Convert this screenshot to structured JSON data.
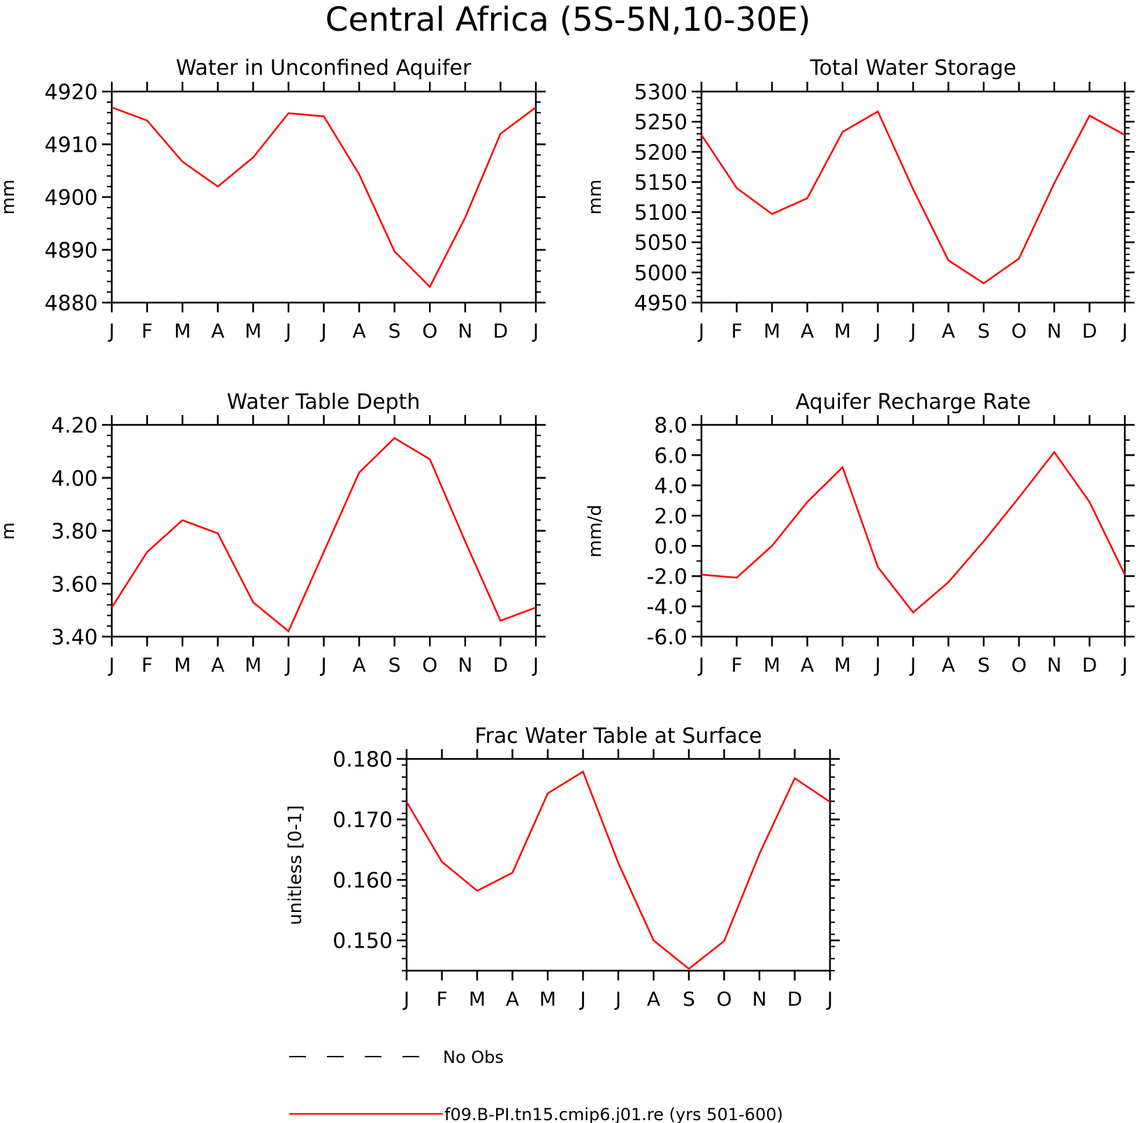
{
  "figure": {
    "title": "Central Africa (5S-5N,10-30E)",
    "line_color": "#ff0000",
    "legend": [
      {
        "label": "No Obs",
        "style": "dashed",
        "color": "#000000"
      },
      {
        "label": "f09.B-PI.tn15.cmip6.j01.re (yrs 501-600)",
        "style": "solid",
        "color": "#ff0000"
      }
    ]
  },
  "chart_data": [
    {
      "type": "line",
      "title": "Water in Unconfined Aquifer",
      "xlabel": "",
      "ylabel": "mm",
      "categories": [
        "J",
        "F",
        "M",
        "A",
        "M",
        "J",
        "J",
        "A",
        "S",
        "O",
        "N",
        "D",
        "J"
      ],
      "ylim": [
        4880,
        4920
      ],
      "yticks": [
        4880,
        4890,
        4900,
        4910,
        4920
      ],
      "ytick_labels": [
        "4880",
        "4890",
        "4900",
        "4910",
        "4920"
      ],
      "series": [
        {
          "values": [
            4917.0,
            4914.5,
            4906.7,
            4902.0,
            4907.5,
            4915.9,
            4915.3,
            4904.3,
            4889.7,
            4883.0,
            4896.1,
            4912.0,
            4917.0
          ]
        }
      ]
    },
    {
      "type": "line",
      "title": "Total Water Storage",
      "xlabel": "",
      "ylabel": "mm",
      "categories": [
        "J",
        "F",
        "M",
        "A",
        "M",
        "J",
        "J",
        "A",
        "S",
        "O",
        "N",
        "D",
        "J"
      ],
      "ylim": [
        4950,
        5300
      ],
      "yticks": [
        4950,
        5000,
        5050,
        5100,
        5150,
        5200,
        5250,
        5300
      ],
      "ytick_labels": [
        "4950",
        "5000",
        "5050",
        "5100",
        "5150",
        "5200",
        "5250",
        "5300"
      ],
      "series": [
        {
          "values": [
            5228,
            5140,
            5097,
            5123,
            5233,
            5267,
            5138,
            5020,
            4982,
            5023,
            5148,
            5260,
            5228
          ]
        }
      ]
    },
    {
      "type": "line",
      "title": "Water Table Depth",
      "xlabel": "",
      "ylabel": "m",
      "categories": [
        "J",
        "F",
        "M",
        "A",
        "M",
        "J",
        "J",
        "A",
        "S",
        "O",
        "N",
        "D",
        "J"
      ],
      "ylim": [
        3.4,
        4.2
      ],
      "yticks": [
        3.4,
        3.6,
        3.8,
        4.0,
        4.2
      ],
      "ytick_labels": [
        "3.40",
        "3.60",
        "3.80",
        "4.00",
        "4.20"
      ],
      "series": [
        {
          "values": [
            3.51,
            3.72,
            3.84,
            3.79,
            3.53,
            3.42,
            3.72,
            4.02,
            4.15,
            4.07,
            3.76,
            3.46,
            3.51
          ]
        }
      ]
    },
    {
      "type": "line",
      "title": "Aquifer Recharge Rate",
      "xlabel": "",
      "ylabel": "mm/d",
      "categories": [
        "J",
        "F",
        "M",
        "A",
        "M",
        "J",
        "J",
        "A",
        "S",
        "O",
        "N",
        "D",
        "J"
      ],
      "ylim": [
        -6,
        8
      ],
      "yticks": [
        -6,
        -4,
        -2,
        0,
        2,
        4,
        6,
        8
      ],
      "ytick_labels": [
        "-6.0",
        "-4.0",
        "-2.0",
        "0.0",
        "2.0",
        "4.0",
        "6.0",
        "8.0"
      ],
      "series": [
        {
          "values": [
            -1.9,
            -2.1,
            0.0,
            2.9,
            5.2,
            -1.4,
            -4.4,
            -2.4,
            0.3,
            3.2,
            6.2,
            2.9,
            -1.9
          ]
        }
      ]
    },
    {
      "type": "line",
      "title": "Frac Water Table at Surface",
      "xlabel": "",
      "ylabel": "unitless [0-1]",
      "categories": [
        "J",
        "F",
        "M",
        "A",
        "M",
        "J",
        "J",
        "A",
        "S",
        "O",
        "N",
        "D",
        "J"
      ],
      "ylim": [
        0.145,
        0.18
      ],
      "yticks": [
        0.15,
        0.16,
        0.17,
        0.18
      ],
      "ytick_labels": [
        "0.150",
        "0.160",
        "0.170",
        "0.180"
      ],
      "series": [
        {
          "values": [
            0.1729,
            0.163,
            0.1582,
            0.1612,
            0.1743,
            0.1779,
            0.1628,
            0.15,
            0.1453,
            0.1499,
            0.1643,
            0.1768,
            0.1729
          ]
        }
      ]
    }
  ]
}
